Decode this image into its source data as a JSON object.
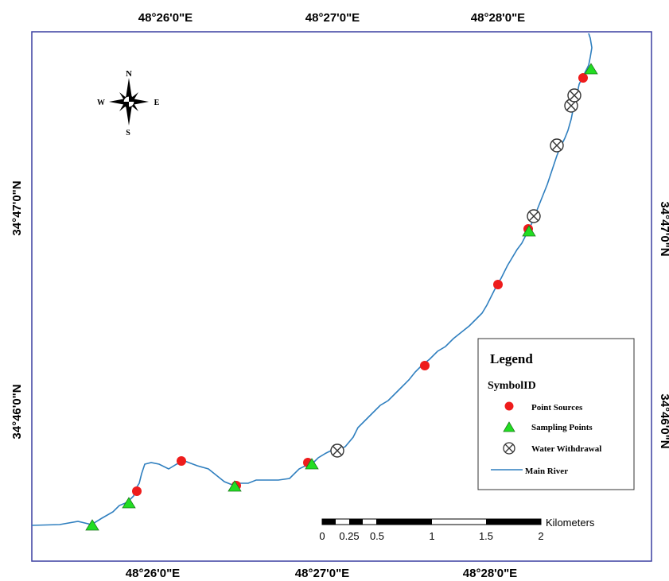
{
  "map": {
    "coords": {
      "top": [
        "48°26'0\"E",
        "48°27'0\"E",
        "48°28'0\"E"
      ],
      "bottom": [
        "48°26'0\"E",
        "48°27'0\"E",
        "48°28'0\"E"
      ],
      "left": [
        "34°47'0\"N",
        "34°46'0\"N"
      ],
      "right": [
        "34°47'0\"N",
        "34°46'0\"N"
      ]
    },
    "north_arrow": {
      "n": "N",
      "s": "S",
      "e": "E",
      "w": "W"
    },
    "legend": {
      "title": "Legend",
      "subtitle": "SymbolID",
      "items": [
        {
          "label": "Point Sources",
          "symbol": "red-circle"
        },
        {
          "label": "Sampling Points",
          "symbol": "green-triangle"
        },
        {
          "label": "Water Withdrawal",
          "symbol": "circle-x"
        },
        {
          "label": "Main River",
          "symbol": "blue-line"
        }
      ]
    },
    "scale_bar": {
      "unit": "Kilometers",
      "labels": [
        "0",
        "0.25",
        "0.5",
        "1",
        "1.5",
        "2"
      ]
    },
    "colors": {
      "river": "#2f7fbf",
      "point_source": "#ee1c1c",
      "sampling_point": "#22dd22",
      "frame": "#3a3fa0"
    }
  }
}
